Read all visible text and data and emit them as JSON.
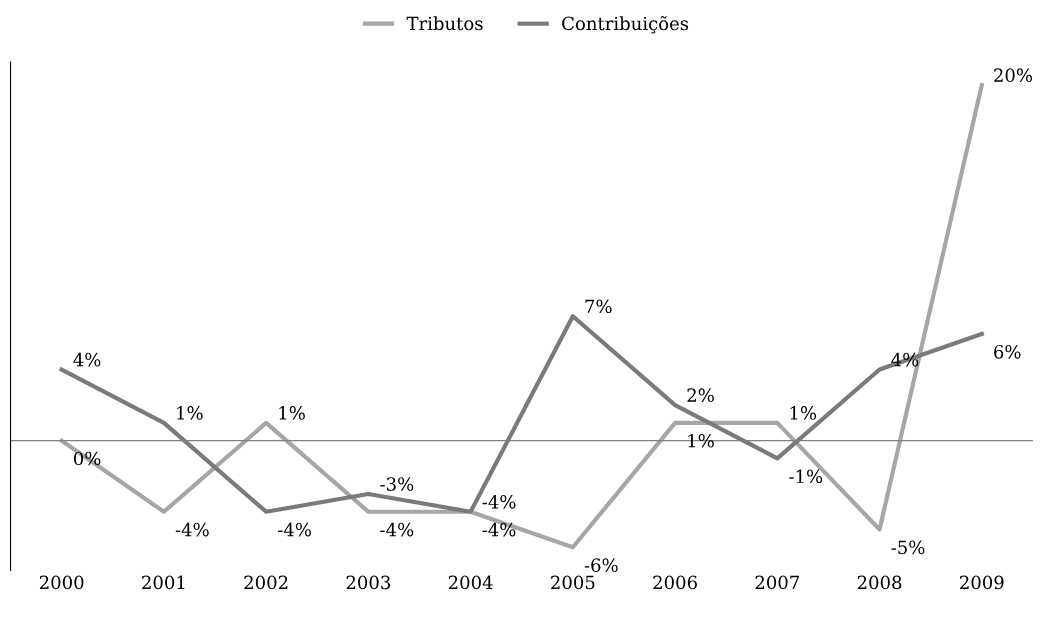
{
  "chart_data": {
    "type": "line",
    "categories": [
      "2000",
      "2001",
      "2002",
      "2003",
      "2004",
      "2005",
      "2006",
      "2007",
      "2008",
      "2009"
    ],
    "series": [
      {
        "name": "Tributos",
        "color": "#a6a6a6",
        "values": [
          0,
          -4,
          1,
          -4,
          -4,
          -6,
          1,
          1,
          -5,
          20
        ],
        "value_labels": [
          "0%",
          "-4%",
          "1%",
          "-4%",
          "-4%",
          "-6%",
          "1%",
          "1%",
          "-5%",
          "20%"
        ]
      },
      {
        "name": "Contribuições",
        "color": "#7a7a7a",
        "values": [
          4,
          1,
          -4,
          -3,
          -4,
          7,
          2,
          -1,
          4,
          6
        ],
        "value_labels": [
          "4%",
          "1%",
          "-4%",
          "-3%",
          "-4%",
          "7%",
          "2%",
          "-1%",
          "4%",
          "6%"
        ]
      }
    ],
    "legend": "top",
    "grid": false,
    "marker": "none",
    "line_style": "solid"
  }
}
